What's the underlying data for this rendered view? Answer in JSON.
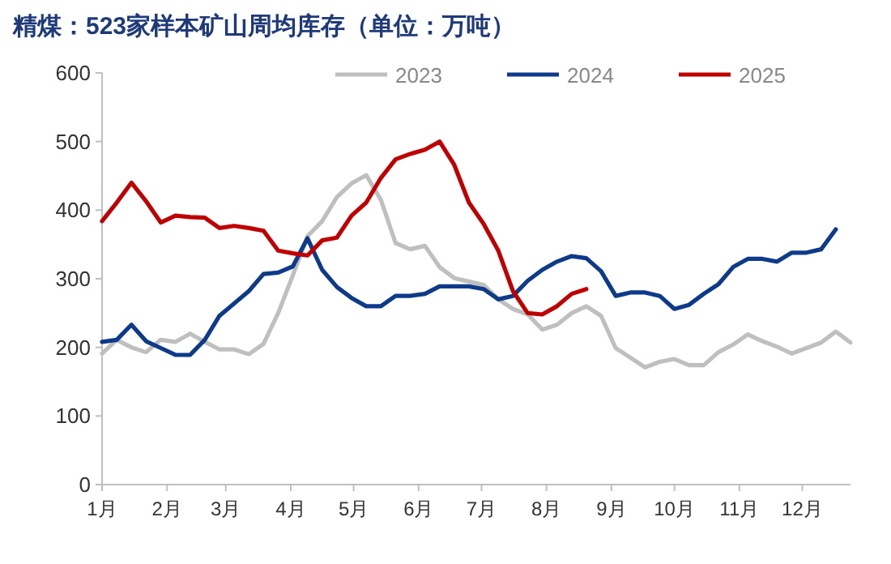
{
  "chart_data": {
    "type": "line",
    "title": "精煤：523家样本矿山周均库存（单位：万吨）",
    "xlim": [
      "--01-01",
      "--12-24"
    ],
    "xticks": [
      {
        "value": "--01-01",
        "label": "1月"
      },
      {
        "value": "--02-01",
        "label": "2月"
      },
      {
        "value": "--03-01",
        "label": "3月"
      },
      {
        "value": "--04-01",
        "label": "4月"
      },
      {
        "value": "--05-01",
        "label": "5月"
      },
      {
        "value": "--06-01",
        "label": "6月"
      },
      {
        "value": "--07-01",
        "label": "7月"
      },
      {
        "value": "--08-01",
        "label": "8月"
      },
      {
        "value": "--09-01",
        "label": "9月"
      },
      {
        "value": "--10-01",
        "label": "10月"
      },
      {
        "value": "--11-01",
        "label": "11月"
      },
      {
        "value": "--12-01",
        "label": "12月"
      }
    ],
    "ylim": [
      0,
      600
    ],
    "yticks": [
      0,
      100,
      200,
      300,
      400,
      500,
      600
    ],
    "grid": false,
    "legend": "top right",
    "series": [
      {
        "name": "2023",
        "color": "#bfbfbf",
        "x": [
          "--01-01",
          "--01-08",
          "--01-15",
          "--01-22",
          "--01-29",
          "--02-05",
          "--02-12",
          "--02-19",
          "--02-26",
          "--03-05",
          "--03-12",
          "--03-19",
          "--03-26",
          "--04-02",
          "--04-09",
          "--04-16",
          "--04-23",
          "--04-30",
          "--05-07",
          "--05-14",
          "--05-21",
          "--05-28",
          "--06-04",
          "--06-11",
          "--06-18",
          "--07-02",
          "--07-09",
          "--07-16",
          "--07-23",
          "--07-30",
          "--08-06",
          "--08-13",
          "--08-20",
          "--08-27",
          "--09-03",
          "--09-17",
          "--09-24",
          "--10-01",
          "--10-08",
          "--10-15",
          "--10-22",
          "--10-29",
          "--11-05",
          "--11-12",
          "--11-19",
          "--11-26",
          "--12-03",
          "--12-10",
          "--12-17",
          "--12-24"
        ],
        "values": [
          191,
          211,
          200,
          193,
          211,
          208,
          220,
          208,
          197,
          197,
          190,
          205,
          250,
          305,
          362,
          384,
          419,
          439,
          451,
          415,
          352,
          343,
          348,
          317,
          301,
          291,
          270,
          256,
          248,
          226,
          233,
          250,
          260,
          246,
          199,
          171,
          179,
          183,
          174,
          174,
          193,
          204,
          219,
          209,
          201,
          191,
          199,
          207,
          223,
          207
        ]
      },
      {
        "name": "2024",
        "color": "#0e3a8a",
        "x": [
          "--01-01",
          "--01-08",
          "--01-15",
          "--01-22",
          "--01-29",
          "--02-05",
          "--02-12",
          "--02-19",
          "--02-26",
          "--03-05",
          "--03-12",
          "--03-19",
          "--03-26",
          "--04-02",
          "--04-09",
          "--04-16",
          "--04-23",
          "--04-30",
          "--05-07",
          "--05-14",
          "--05-21",
          "--05-28",
          "--06-04",
          "--06-11",
          "--06-18",
          "--06-25",
          "--07-02",
          "--07-09",
          "--07-16",
          "--07-23",
          "--07-30",
          "--08-06",
          "--08-13",
          "--08-20",
          "--08-27",
          "--09-03",
          "--09-10",
          "--09-17",
          "--09-24",
          "--10-01",
          "--10-08",
          "--10-15",
          "--10-22",
          "--10-29",
          "--11-05",
          "--11-12",
          "--11-19",
          "--11-26",
          "--12-03",
          "--12-10",
          "--12-17"
        ],
        "values": [
          208,
          211,
          233,
          209,
          199,
          189,
          189,
          211,
          246,
          264,
          282,
          307,
          309,
          318,
          359,
          313,
          288,
          272,
          260,
          260,
          275,
          275,
          278,
          289,
          289,
          289,
          285,
          270,
          275,
          297,
          313,
          325,
          333,
          330,
          311,
          275,
          280,
          280,
          275,
          256,
          262,
          278,
          292,
          317,
          329,
          329,
          325,
          338,
          338,
          343,
          372
        ]
      },
      {
        "name": "2025",
        "color": "#c00000",
        "x": [
          "--01-01",
          "--01-08",
          "--01-15",
          "--01-22",
          "--01-29",
          "--02-05",
          "--02-12",
          "--02-19",
          "--02-26",
          "--03-05",
          "--03-12",
          "--03-19",
          "--03-26",
          "--04-02",
          "--04-09",
          "--04-16",
          "--04-23",
          "--04-30",
          "--05-07",
          "--05-14",
          "--05-21",
          "--05-28",
          "--06-04",
          "--06-11",
          "--06-18",
          "--06-25",
          "--07-02",
          "--07-09",
          "--07-16",
          "--07-23",
          "--07-30",
          "--08-06",
          "--08-13",
          "--08-20"
        ],
        "values": [
          384,
          411,
          440,
          413,
          382,
          392,
          390,
          389,
          374,
          377,
          374,
          370,
          341,
          337,
          334,
          356,
          360,
          392,
          411,
          447,
          474,
          482,
          488,
          500,
          466,
          411,
          380,
          341,
          282,
          250,
          248,
          260,
          278,
          285
        ]
      }
    ]
  }
}
